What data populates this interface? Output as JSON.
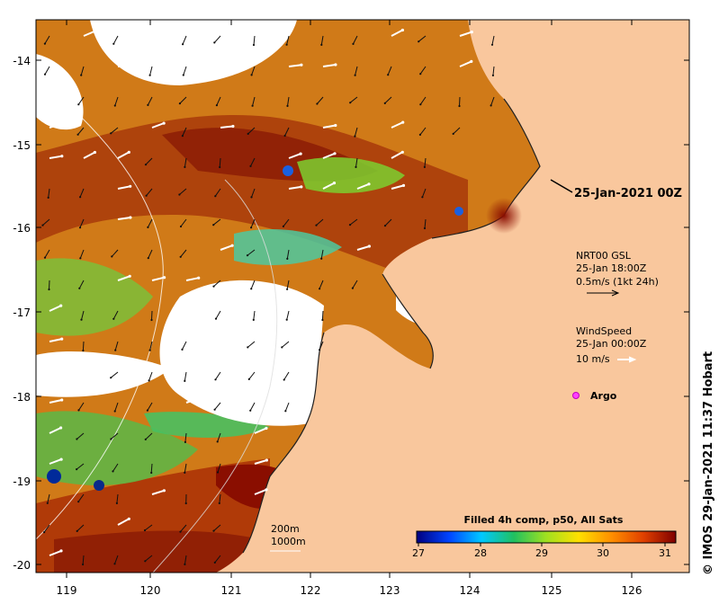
{
  "map": {
    "x_ticks": [
      "119",
      "120",
      "121",
      "122",
      "123",
      "124",
      "125",
      "126"
    ],
    "y_ticks": [
      "-14",
      "-15",
      "-16",
      "-17",
      "-18",
      "-19",
      "-20"
    ],
    "date_label": "25-Jan-2021 00Z",
    "current_legend": {
      "line1": "NRT00 GSL",
      "line2": "25-Jan 18:00Z",
      "line3": "0.5m/s (1kt 24h)"
    },
    "wind_legend": {
      "line1": "WindSpeed",
      "line2": "25-Jan 00:00Z",
      "line3": "10 m/s"
    },
    "argo_label": "Argo",
    "isobaths": {
      "a": "200m",
      "b": "1000m"
    },
    "colorbar": {
      "title": "Filled 4h comp, p50, All Sats",
      "ticks": [
        "27",
        "28",
        "29",
        "30",
        "31"
      ],
      "stops": [
        "#00007f",
        "#0044ff",
        "#00c8ff",
        "#20c060",
        "#a0e020",
        "#ffe000",
        "#ff9000",
        "#e04000",
        "#7f0000"
      ]
    },
    "credit": "© IMOS 29-Jan-2021 11:37 Hobart",
    "land_color": "#f9c79d"
  }
}
